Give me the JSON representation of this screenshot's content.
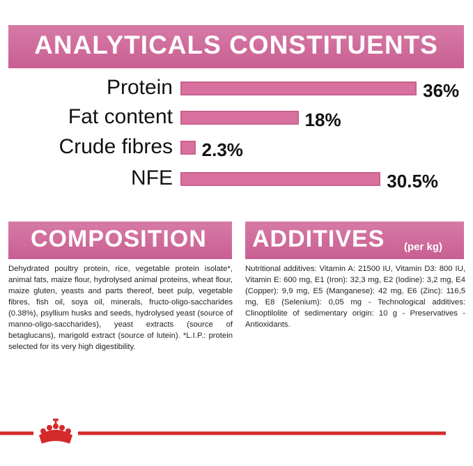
{
  "chart_data": {
    "type": "bar",
    "title": "ANALYTICALS CONSTITUENTS",
    "categories": [
      "Protein",
      "Fat content",
      "Crude fibres",
      "NFE"
    ],
    "values": [
      36,
      18,
      2.3,
      30.5
    ],
    "value_labels": [
      "36%",
      "18%",
      "2.3%",
      "30.5%"
    ],
    "color": "#d9719f"
  },
  "composition": {
    "title": "COMPOSITION",
    "text": "Dehydrated poultry protein, rice, vegetable protein isolate*, animal fats, maize flour, hydrolysed animal proteins, wheat flour, maize gluten, yeasts and parts thereof, beet pulp, vegetable fibres, fish oil, soya oil, minerals, fructo-oligo-saccharides (0.38%), psyllium husks and seeds, hydrolysed yeast (source of manno-oligo-saccharides), yeast extracts (source of betaglucans), marigold extract (source of lutein). *L.I.P.: protein selected for its very high digestibility."
  },
  "additives": {
    "title": "ADDITIVES",
    "subtitle": "(per kg)",
    "text": "Nutritional additives: Vitamin A: 21500 IU, Vitamin D3: 800 IU, Vitamin E: 600 mg, E1 (Iron): 32,3 mg, E2 (Iodine): 3,2 mg, E4 (Copper): 9,9 mg, E5 (Manganese): 42 mg, E6 (Zinc): 116,5 mg, E8 (Selenium): 0,05 mg - Technological additives: Clinoptilolite of sedimentary origin: 10 g - Preservatives - Antioxidants."
  }
}
